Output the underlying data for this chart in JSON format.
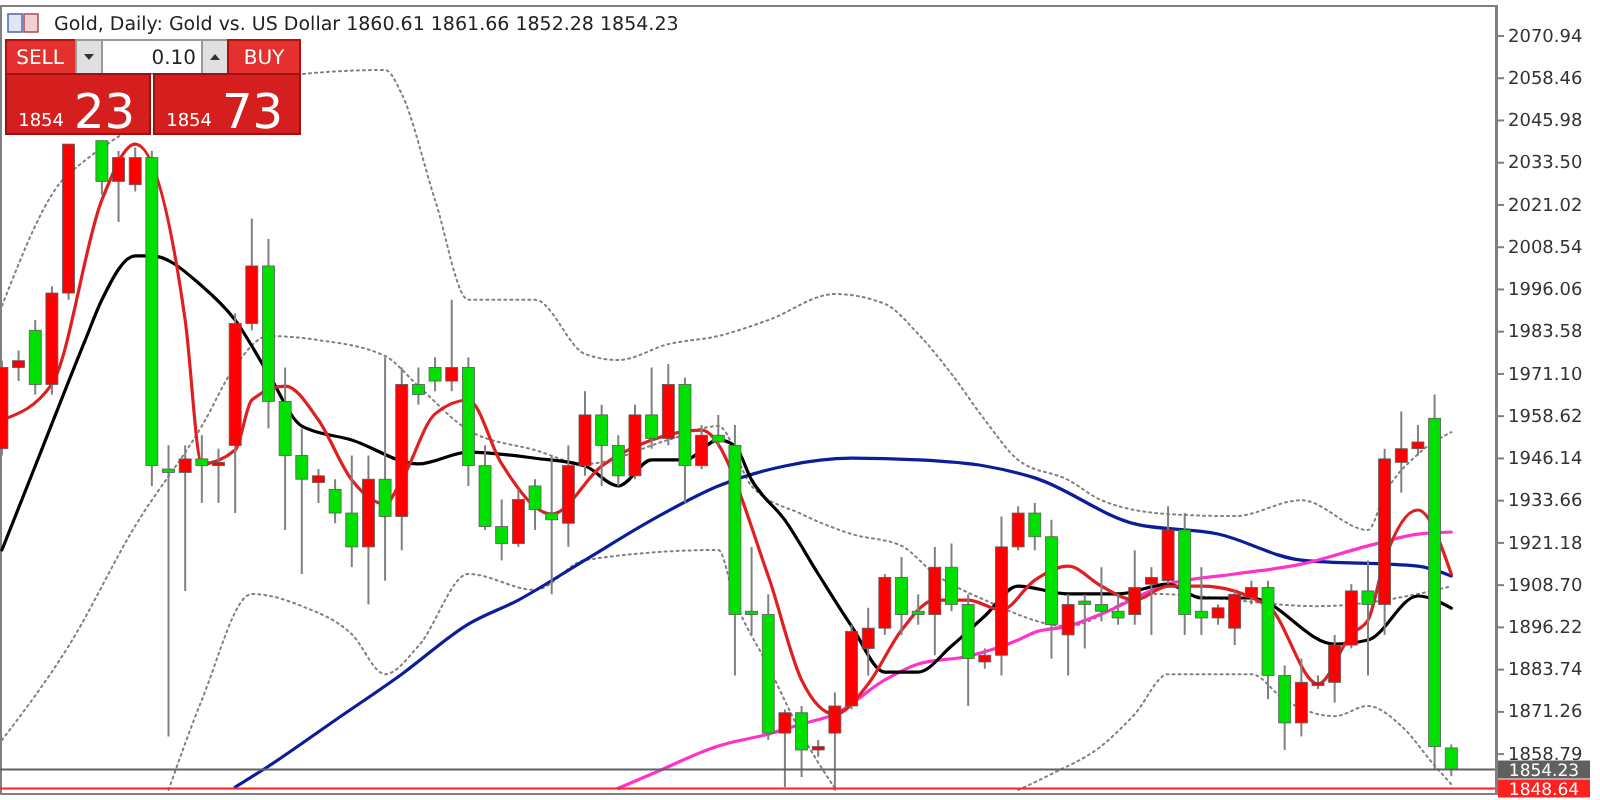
{
  "chart_data": {
    "type": "candlestick",
    "title": "Gold, Daily:  Gold vs. US Dollar  1860.61 1861.66 1852.28 1854.23",
    "annotations": [
      "SELL",
      "0.10",
      "BUY",
      "1854",
      "23",
      "1854",
      "73"
    ],
    "categories": [
      null,
      null,
      null,
      null,
      null,
      null,
      null,
      null,
      null,
      null,
      null,
      null,
      null,
      null,
      null,
      null,
      null,
      null,
      null,
      null,
      null,
      null,
      null,
      null,
      null,
      null,
      null,
      null,
      null,
      null,
      null,
      null,
      null,
      null,
      null,
      null,
      null,
      null,
      null,
      null,
      null,
      null,
      null,
      null,
      null,
      null,
      null,
      null,
      null,
      null,
      null,
      null,
      null,
      null,
      null,
      null,
      null,
      null,
      null,
      null,
      null,
      null,
      null,
      null,
      null,
      null,
      null,
      null,
      null,
      null,
      null,
      null,
      null,
      null,
      null,
      null,
      null,
      null,
      null,
      null,
      null,
      null,
      null,
      null,
      null,
      null,
      null,
      null
    ],
    "ylim": [
      1847,
      2079.8
    ],
    "yticks": [
      1858.79,
      1871.26,
      1883.74,
      1896.22,
      {
        "value": 1908.7,
        "label": "1908.70"
      },
      1921.18,
      1933.66,
      1946.14,
      1958.62,
      {
        "value": 1971.1,
        "label": "1971.10"
      },
      1983.58,
      1996.06,
      2008.54,
      2021.02,
      {
        "value": 2033.5,
        "label": "2033.50"
      },
      2045.98,
      2058.46,
      2070.94
    ],
    "tick_labels": "y",
    "ref_lines": [
      {
        "axis": "y",
        "value": 1854.23,
        "label": "1854.23",
        "color": "#606060"
      },
      {
        "axis": "y",
        "value": 1848.64,
        "label": "1848.64",
        "color": "#ff2020"
      }
    ],
    "series": [
      {
        "type": "candlestick",
        "ohlc": [
          [
            1949,
            1975,
            1947,
            1973
          ],
          [
            1973,
            1978,
            1969,
            1975
          ],
          [
            1984,
            1987,
            1965,
            1968
          ],
          [
            1968,
            1997,
            1965,
            1995
          ],
          [
            1995,
            2039,
            1993,
            2039
          ],
          null,
          [
            2040,
            2040,
            2024,
            2028
          ],
          [
            2028,
            2037,
            2016,
            2035
          ],
          [
            2027,
            2038,
            2025,
            2035
          ],
          [
            2035,
            2037,
            1938,
            1944
          ],
          [
            1943,
            1950,
            1864,
            1942
          ],
          [
            1942,
            1950,
            1907,
            1946
          ],
          [
            1946,
            1953,
            1933,
            1944
          ],
          [
            1944,
            1949,
            1933,
            1945
          ],
          [
            1950,
            1989,
            1930,
            1986
          ],
          [
            1986,
            2017,
            1984,
            2003
          ],
          [
            2003,
            2011,
            1955,
            1963
          ],
          [
            1963,
            1973,
            1925,
            1947
          ],
          [
            1947,
            1955,
            1912,
            1940
          ],
          [
            1939,
            1943,
            1933,
            1941
          ],
          [
            1937,
            1940,
            1927,
            1930
          ],
          [
            1930,
            1947,
            1914,
            1920
          ],
          [
            1920,
            1947,
            1903,
            1940
          ],
          [
            1940,
            1976,
            1910,
            1929
          ],
          [
            1929,
            1973,
            1919,
            1968
          ],
          [
            1968,
            1973,
            1962,
            1965
          ],
          [
            1973,
            1976,
            1966,
            1969
          ],
          [
            1969,
            1993,
            1966,
            1973
          ],
          [
            1973,
            1976,
            1938,
            1944
          ],
          [
            1944,
            1950,
            1925,
            1926
          ],
          [
            1926,
            1934,
            1916,
            1921
          ],
          [
            1921,
            1937,
            1920,
            1934
          ],
          [
            1938,
            1940,
            1925,
            1931
          ],
          [
            1930,
            1947,
            1906,
            1928
          ],
          [
            1927,
            1950,
            1920,
            1944
          ],
          [
            1944,
            1966,
            1941,
            1959
          ],
          [
            1959,
            1962,
            1938,
            1950
          ],
          [
            1950,
            1953,
            1938,
            1941
          ],
          [
            1941,
            1962,
            1940,
            1959
          ],
          [
            1959,
            1973,
            1949,
            1952
          ],
          [
            1952,
            1974,
            1950,
            1968
          ],
          [
            1968,
            1970,
            1933,
            1944
          ],
          [
            1944,
            1956,
            1943,
            1953
          ],
          [
            1953,
            1959,
            1950,
            1951
          ],
          [
            1950,
            1956,
            1882,
            1900
          ],
          [
            1901,
            1920,
            1894,
            1900
          ],
          [
            1900,
            1906,
            1863,
            1865
          ],
          [
            1865,
            1872,
            1849,
            1871
          ],
          [
            1871,
            1873,
            1852,
            1860
          ],
          [
            1860,
            1863,
            1858,
            1861
          ],
          [
            1865,
            1877,
            1848,
            1873
          ],
          [
            1873,
            1897,
            1872,
            1895
          ],
          [
            1890,
            1902,
            1882,
            1896
          ],
          [
            1896,
            1912,
            1894,
            1911
          ],
          [
            1911,
            1917,
            1894,
            1900
          ],
          [
            1901,
            1906,
            1897,
            1900
          ],
          [
            1900,
            1920,
            1888,
            1914
          ],
          [
            1914,
            1921,
            1901,
            1903
          ],
          [
            1903,
            1906,
            1873,
            1887
          ],
          [
            1886,
            1890,
            1884,
            1888
          ],
          [
            1888,
            1929,
            1882,
            1920
          ],
          [
            1920,
            1932,
            1919,
            1930
          ],
          [
            1930,
            1933,
            1919,
            1923
          ],
          [
            1923,
            1928,
            1887,
            1897
          ],
          [
            1894,
            1906,
            1882,
            1903
          ],
          [
            1904,
            1906,
            1890,
            1903
          ],
          [
            1903,
            1914,
            1898,
            1901
          ],
          [
            1901,
            1906,
            1897,
            1899
          ],
          [
            1900,
            1919,
            1897,
            1908
          ],
          [
            1909,
            1914,
            1894,
            1911
          ],
          [
            1910,
            1932,
            1909,
            1925
          ],
          [
            1925,
            1930,
            1894,
            1900
          ],
          [
            1901,
            1914,
            1894,
            1899
          ],
          [
            1899,
            1903,
            1897,
            1902
          ],
          [
            1896,
            1907,
            1891,
            1906
          ],
          [
            1905,
            1910,
            1903,
            1908
          ],
          [
            1908,
            1910,
            1875,
            1882
          ],
          [
            1882,
            1885,
            1860,
            1868
          ],
          [
            1868,
            1887,
            1864,
            1880
          ],
          [
            1879,
            1882,
            1878,
            1880
          ],
          [
            1880,
            1894,
            1874,
            1891
          ],
          [
            1891,
            1909,
            1890,
            1907
          ],
          [
            1907,
            1916,
            1882,
            1903
          ],
          [
            1903,
            1949,
            1894,
            1946
          ],
          [
            1945,
            1960,
            1936,
            1949
          ],
          [
            1949,
            1956,
            1947,
            1951
          ],
          [
            1958,
            1965,
            1854,
            1861
          ],
          [
            1860.61,
            1861.66,
            1852.28,
            1854.23
          ]
        ],
        "colors": [
          "#ff0000",
          "#ff0000",
          "#00e000",
          "#ff0000",
          "#ff0000",
          null,
          "#00e000",
          "#ff0000",
          "#ff0000",
          "#00e000",
          "#00e000",
          "#ff0000",
          "#00e000",
          "#ff0000",
          "#ff0000",
          "#ff0000",
          "#00e000",
          "#00e000",
          "#00e000",
          "#ff0000",
          "#00e000",
          "#00e000",
          "#ff0000",
          "#00e000",
          "#ff0000",
          "#00e000",
          "#00e000",
          "#ff0000",
          "#00e000",
          "#00e000",
          "#00e000",
          "#ff0000",
          "#00e000",
          "#00e000",
          "#ff0000",
          "#ff0000",
          "#00e000",
          "#00e000",
          "#ff0000",
          "#00e000",
          "#ff0000",
          "#00e000",
          "#ff0000",
          "#00e000",
          "#00e000",
          "#00e000",
          "#00e000",
          "#ff0000",
          "#00e000",
          "#ff0000",
          "#ff0000",
          "#ff0000",
          "#ff0000",
          "#ff0000",
          "#00e000",
          "#00e000",
          "#ff0000",
          "#00e000",
          "#00e000",
          "#ff0000",
          "#ff0000",
          "#ff0000",
          "#00e000",
          "#00e000",
          "#ff0000",
          "#00e000",
          "#00e000",
          "#00e000",
          "#ff0000",
          "#ff0000",
          "#ff0000",
          "#00e000",
          "#00e000",
          "#ff0000",
          "#ff0000",
          "#ff0000",
          "#00e000",
          "#00e000",
          "#ff0000",
          "#ff0000",
          "#ff0000",
          "#ff0000",
          "#00e000",
          "#ff0000",
          "#ff0000",
          "#ff0000",
          "#00e000",
          "#00e000"
        ]
      },
      {
        "type": "line",
        "color": "#808080",
        "line_style": "dotted",
        "values": [
          1991.2,
          null,
          null,
          null,
          2030.2,
          null,
          null,
          null,
          null,
          null,
          null,
          null,
          null,
          null,
          null,
          null,
          null,
          null,
          2059.7,
          null,
          null,
          null,
          null,
          2060.9,
          2053.8,
          null,
          2022.5,
          null,
          1993.0,
          null,
          null,
          null,
          1993.0,
          null,
          null,
          1977.0,
          null,
          1975.2,
          null,
          null,
          1979.9,
          null,
          null,
          1982.3,
          null,
          null,
          1987.0,
          null,
          null,
          null,
          1994.7,
          null,
          null,
          1991.8,
          null,
          1982.9,
          null,
          1971.1,
          null,
          1957.5,
          null,
          1945.7,
          null,
          null,
          1939.8,
          null,
          1933.8,
          null,
          null,
          null,
          1929.7,
          null,
          null,
          null,
          1929.1,
          null,
          null,
          null,
          1933.8,
          null,
          null,
          null,
          1925.0,
          1935.6,
          null,
          1947.4,
          null,
          1953.9
        ]
      },
      {
        "type": "line",
        "color": "#808080",
        "line_style": "dotted",
        "values": [
          1862.9,
          null,
          null,
          null,
          1890.7,
          null,
          null,
          null,
          1926.2,
          null,
          null,
          null,
          1955.7,
          null,
          1973.4,
          null,
          1982.3,
          null,
          null,
          1981.1,
          null,
          null,
          null,
          1976.4,
          null,
          1967.5,
          null,
          null,
          1954.5,
          null,
          null,
          null,
          1948.6,
          null,
          null,
          1944.5,
          null,
          null,
          null,
          null,
          1951.6,
          null,
          null,
          1955.7,
          null,
          1938.0,
          null,
          null,
          1929.7,
          null,
          null,
          1923.8,
          null,
          null,
          1920.3,
          null,
          1912.0,
          null,
          null,
          1904.3,
          null,
          null,
          null,
          null,
          1896.6,
          null,
          null,
          null,
          null,
          1906.1,
          null,
          null,
          null,
          null,
          null,
          null,
          null,
          null,
          null,
          1902.5,
          null,
          null,
          null,
          null,
          null,
          1906.1,
          null,
          1908.4
        ]
      },
      {
        "type": "line",
        "color": "#808080",
        "line_style": "dotted",
        "values": [
          null,
          null,
          null,
          null,
          null,
          null,
          null,
          null,
          null,
          null,
          1848.2,
          null,
          1874.8,
          null,
          null,
          1906.1,
          null,
          null,
          1902.5,
          null,
          null,
          1894.2,
          null,
          1882.4,
          null,
          1890.7,
          null,
          null,
          1912.0,
          null,
          null,
          null,
          1907.3,
          null,
          null,
          1916.1,
          null,
          null,
          null,
          null,
          null,
          null,
          null,
          1919.1,
          1904.3,
          null,
          1884.8,
          null,
          1864.7,
          null,
          1848.7,
          null,
          null,
          null,
          null,
          null,
          null,
          null,
          null,
          null,
          null,
          null,
          null,
          null,
          null,
          null,
          null,
          null,
          null,
          null,
          null,
          null,
          null,
          null,
          null,
          null,
          null,
          null,
          null,
          null,
          null,
          null,
          null,
          null,
          null,
          null,
          null,
          null
        ]
      },
      {
        "type": "line",
        "color": "#808080",
        "line_style": "dotted",
        "values": [
          null,
          null,
          null,
          null,
          null,
          null,
          null,
          null,
          null,
          null,
          null,
          null,
          null,
          null,
          null,
          null,
          null,
          null,
          null,
          null,
          null,
          null,
          null,
          null,
          null,
          null,
          null,
          null,
          null,
          null,
          null,
          null,
          null,
          null,
          null,
          null,
          null,
          null,
          null,
          null,
          null,
          null,
          null,
          null,
          null,
          null,
          null,
          null,
          null,
          null,
          null,
          null,
          null,
          null,
          null,
          null,
          null,
          null,
          null,
          null,
          null,
          1848.2,
          null,
          1852.9,
          null,
          null,
          1861.2,
          null,
          1870.6,
          null,
          1882.4,
          null,
          null,
          null,
          null,
          1882.4,
          null,
          1874.8,
          null,
          null,
          1870.0,
          null,
          1873.0,
          null,
          1867.1,
          null,
          1855.4,
          1849.9
        ]
      },
      {
        "type": "line",
        "color": "#0a1e9a",
        "values": [
          null,
          null,
          null,
          null,
          null,
          null,
          null,
          null,
          null,
          null,
          null,
          null,
          null,
          null,
          1849,
          null,
          1855.2,
          null,
          null,
          null,
          1868.8,
          null,
          null,
          null,
          1882.4,
          null,
          null,
          null,
          1897.2,
          null,
          null,
          1904.3,
          null,
          null,
          null,
          1916.1,
          null,
          null,
          null,
          1927.9,
          null,
          null,
          null,
          1938.0,
          null,
          null,
          null,
          1943.9,
          null,
          null,
          null,
          1946.2,
          null,
          null,
          null,
          1945.7,
          null,
          null,
          null,
          1943.9,
          null,
          null,
          1940.4,
          null,
          null,
          null,
          null,
          null,
          1926.8,
          null,
          null,
          null,
          null,
          1923.8,
          null,
          null,
          null,
          null,
          1916.1,
          null,
          null,
          null,
          null,
          null,
          null,
          1914.3,
          null,
          1911.4
        ]
      },
      {
        "type": "line",
        "color": "#ff33cc",
        "values": [
          null,
          null,
          null,
          null,
          null,
          null,
          null,
          null,
          null,
          null,
          null,
          null,
          null,
          null,
          null,
          null,
          null,
          null,
          null,
          null,
          null,
          null,
          null,
          null,
          null,
          null,
          null,
          null,
          null,
          null,
          null,
          null,
          null,
          null,
          null,
          null,
          null,
          1848.7,
          null,
          1852.9,
          null,
          null,
          null,
          1861.2,
          null,
          null,
          1864.7,
          null,
          1867.7,
          null,
          1870.6,
          null,
          null,
          1880.7,
          null,
          1885.4,
          null,
          null,
          1887.7,
          null,
          null,
          1892.5,
          1894.8,
          null,
          1896.6,
          null,
          1900.2,
          null,
          null,
          null,
          1909.0,
          null,
          null,
          null,
          1912.0,
          null,
          null,
          null,
          1914.9,
          null,
          null,
          null,
          1920.3,
          null,
          null,
          1923.8,
          null,
          1924.4
        ]
      },
      {
        "type": "line",
        "color": "#000000",
        "values": [
          1919.1,
          null,
          1943.9,
          null,
          null,
          1981.1,
          1993.0,
          null,
          2006.0,
          2006.0,
          null,
          null,
          1997.1,
          null,
          1987.0,
          null,
          1971.1,
          null,
          1955.7,
          null,
          null,
          1951.6,
          null,
          null,
          null,
          1944.5,
          null,
          null,
          1948.0,
          null,
          null,
          null,
          1946.2,
          null,
          null,
          1943.9,
          null,
          1938.0,
          null,
          1945.7,
          null,
          1945.7,
          null,
          1951.6,
          1949.8,
          1939.8,
          null,
          1927.9,
          null,
          1912.0,
          null,
          1896.6,
          null,
          1883.0,
          null,
          1883.0,
          null,
          1890.7,
          null,
          1899.6,
          null,
          1908.4,
          null,
          null,
          1906.1,
          null,
          null,
          1906.1,
          null,
          null,
          1909.0,
          null,
          1904.9,
          null,
          null,
          1904.9,
          null,
          null,
          null,
          null,
          1891.3,
          null,
          1892.5,
          null,
          null,
          1905.5,
          null,
          1901.9
        ]
      },
      {
        "type": "line",
        "color": "#e02020",
        "values": [
          1957.5,
          null,
          null,
          1968.1,
          null,
          null,
          2022.5,
          null,
          2039.0,
          null,
          null,
          1987.0,
          1944.5,
          null,
          1948.6,
          1963.4,
          null,
          1967.5,
          null,
          1957.5,
          null,
          1939.8,
          null,
          1932.7,
          1939.8,
          null,
          1959.3,
          null,
          1963.4,
          null,
          1944.5,
          null,
          null,
          1929.7,
          null,
          null,
          1943.9,
          null,
          null,
          1951.6,
          null,
          null,
          1954.5,
          null,
          null,
          null,
          1911.4,
          null,
          1880.7,
          null,
          1870.6,
          null,
          1879.5,
          null,
          1895.4,
          null,
          1904.3,
          null,
          1904.3,
          null,
          1901.4,
          null,
          1910.2,
          null,
          1914.3,
          null,
          1908.4,
          null,
          1904.3,
          null,
          1908.4,
          null,
          1908.4,
          null,
          null,
          null,
          1902.5,
          null,
          null,
          1879.5,
          null,
          1894.2,
          1898.4,
          1916.1,
          null,
          1930.9,
          null,
          1912.0
        ]
      }
    ]
  }
}
